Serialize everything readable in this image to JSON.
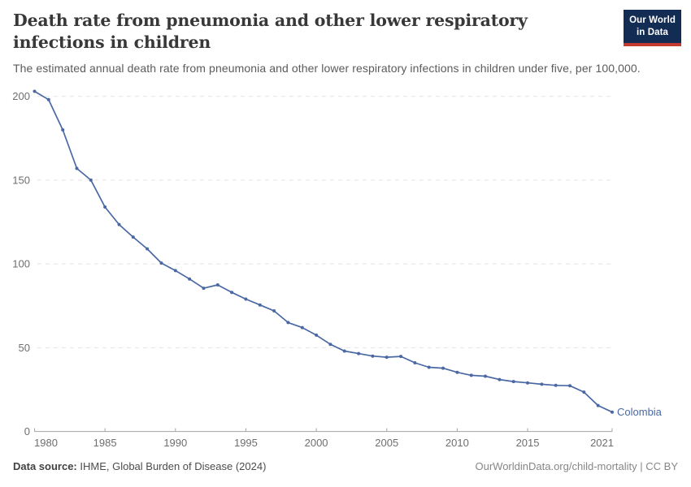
{
  "header": {
    "title": "Death rate from pneumonia and other lower respiratory infections in children",
    "subtitle": "The estimated annual death rate from pneumonia and other lower respiratory infections in children under five, per 100,000.",
    "logo": {
      "line1": "Our World",
      "line2": "in Data"
    }
  },
  "chart_data": {
    "type": "line",
    "title": "Death rate from pneumonia and other lower respiratory infections in children",
    "xlabel": "",
    "ylabel": "",
    "xlim": [
      1980,
      2021
    ],
    "ylim": [
      0,
      210
    ],
    "grid": "horizontal-dashed",
    "legend_position": "end-of-line-label",
    "x_ticks": [
      1980,
      1985,
      1990,
      1995,
      2000,
      2005,
      2010,
      2015,
      2021
    ],
    "x_tick_labels": [
      "1980",
      "1985",
      "1990",
      "1995",
      "2000",
      "2005",
      "2010",
      "2015",
      "2021"
    ],
    "y_ticks": [
      0,
      50,
      100,
      150,
      200
    ],
    "y_tick_labels": [
      "0",
      "50",
      "100",
      "150",
      "200"
    ],
    "series": [
      {
        "name": "Colombia",
        "years": [
          1980,
          1981,
          1982,
          1983,
          1984,
          1985,
          1986,
          1987,
          1988,
          1989,
          1990,
          1991,
          1992,
          1993,
          1994,
          1995,
          1996,
          1997,
          1998,
          1999,
          2000,
          2001,
          2002,
          2003,
          2004,
          2005,
          2006,
          2007,
          2008,
          2009,
          2010,
          2011,
          2012,
          2013,
          2014,
          2015,
          2016,
          2017,
          2018,
          2019,
          2020,
          2021
        ],
        "values": [
          203,
          198,
          180,
          157,
          150,
          134,
          123.5,
          116,
          109,
          100.5,
          96,
          91,
          85.5,
          87.5,
          83,
          79,
          75.5,
          72,
          65,
          62,
          57.5,
          52,
          48,
          46.5,
          45,
          44.3,
          44.8,
          41,
          38.3,
          37.8,
          35.3,
          33.5,
          33,
          31,
          29.8,
          29,
          28.2,
          27.5,
          27.3,
          23.5,
          15.5,
          11.6
        ]
      }
    ],
    "colors": {
      "line": "#4a68a4",
      "grid": "#e2e2e2",
      "axis": "#a3a3a3",
      "tick_label": "#6e6e6e"
    }
  },
  "footer": {
    "source_label": "Data source:",
    "source_text": " IHME, Global Burden of Disease (2024)",
    "credit": "OurWorldinData.org/child-mortality | CC BY"
  }
}
